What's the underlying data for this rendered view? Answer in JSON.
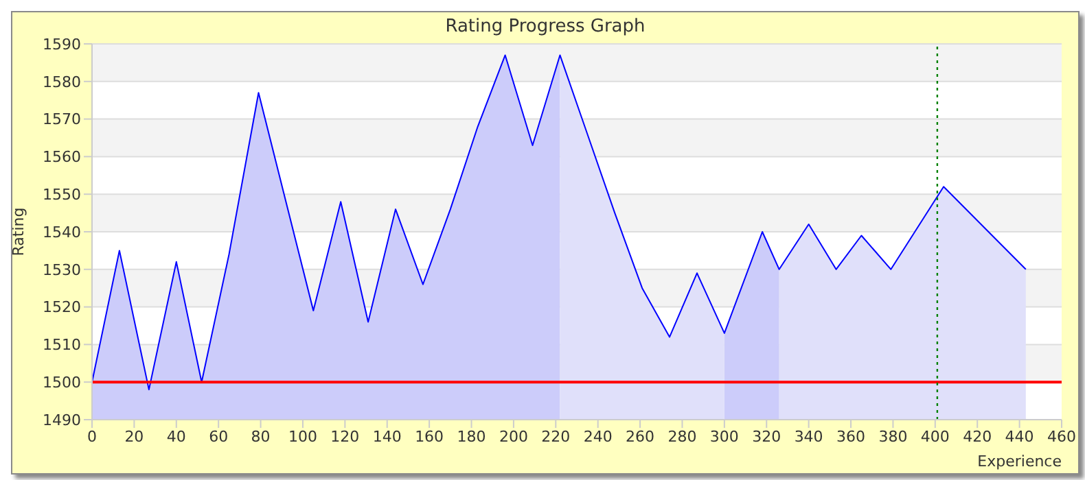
{
  "chart_data": {
    "type": "area",
    "title": "Rating Progress Graph",
    "xlabel": "Experience",
    "ylabel": "Rating",
    "x": [
      0,
      13,
      27,
      40,
      52,
      65,
      79,
      92,
      105,
      118,
      131,
      144,
      157,
      170,
      183,
      196,
      209,
      222,
      235,
      248,
      261,
      274,
      287,
      300,
      318,
      326,
      340,
      353,
      365,
      379,
      404,
      443
    ],
    "series": [
      {
        "color": "#ccccfa",
        "values": [
          1500,
          1535,
          1498,
          1532,
          1500,
          1534,
          1577,
          1548,
          1519,
          1548,
          1516,
          1546,
          1526,
          1546,
          1568,
          1587,
          1563,
          1587,
          null,
          null,
          null,
          null,
          null,
          1513,
          1540,
          1530,
          null,
          null,
          null,
          null,
          null,
          null
        ]
      },
      {
        "color": "#e0e0fa",
        "values": [
          null,
          null,
          null,
          null,
          null,
          null,
          null,
          null,
          null,
          null,
          null,
          null,
          null,
          null,
          null,
          null,
          null,
          1587,
          1566,
          1545,
          1525,
          1512,
          1529,
          1513,
          null,
          1530,
          1542,
          1530,
          1539,
          1530,
          1552,
          1530
        ]
      },
      {
        "type": "line",
        "color": "#0000ff",
        "values": [
          1500,
          1535,
          1498,
          1532,
          1500,
          1534,
          1577,
          1548,
          1519,
          1548,
          1516,
          1546,
          1526,
          1546,
          1568,
          1587,
          1563,
          1587,
          1566,
          1545,
          1525,
          1512,
          1529,
          1513,
          1540,
          1530,
          1542,
          1530,
          1539,
          1530,
          1552,
          1530
        ]
      }
    ],
    "xlim": [
      0,
      460
    ],
    "xticks": [
      0,
      20,
      40,
      60,
      80,
      100,
      120,
      140,
      160,
      180,
      200,
      220,
      240,
      260,
      280,
      300,
      320,
      340,
      360,
      380,
      400,
      420,
      440,
      460
    ],
    "ylim": [
      1490,
      1590
    ],
    "yticks": [
      1490,
      1500,
      1510,
      1520,
      1530,
      1540,
      1550,
      1560,
      1570,
      1580,
      1590
    ],
    "grid": "y",
    "marker": "none",
    "ref_lines": [
      {
        "axis": "y",
        "value": 1500,
        "color": "#ff0000",
        "line_style": "solid"
      },
      {
        "axis": "x",
        "value": 401,
        "color": "#008000",
        "line_style": "dotted"
      }
    ]
  }
}
